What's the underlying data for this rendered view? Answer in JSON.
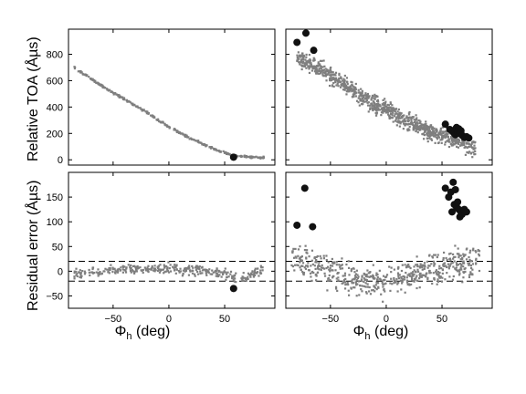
{
  "figure": {
    "ylabel_top": "Relative TOA (Åµs)",
    "ylabel_bottom": "Residual error (Åµs)",
    "xlabel_main": "Φ",
    "xlabel_sub": "h",
    "xlabel_unit": " (deg)"
  },
  "colors": {
    "measured": "#7f7f7f",
    "outlier": "#111111"
  },
  "chart_data": [
    {
      "panel": "top-left",
      "type": "scatter",
      "xlim": [
        -90,
        95
      ],
      "ylim": [
        -40,
        990
      ],
      "xticks": [
        -50,
        0,
        50
      ],
      "yticks": [
        0,
        200,
        400,
        600,
        800
      ],
      "xticklabels_shown": false,
      "yticklabels_shown": true,
      "series": [
        {
          "role": "measured",
          "curve": {
            "x": [
              -85,
              -60,
              -40,
              -20,
              0,
              20,
              40,
              55,
              65,
              75,
              85
            ],
            "y": [
              700,
              560,
              460,
              360,
              250,
              160,
              85,
              40,
              25,
              20,
              18
            ]
          },
          "spread": 8
        },
        {
          "role": "outlier",
          "points": [
            [
              58,
              20
            ]
          ]
        }
      ]
    },
    {
      "panel": "top-right",
      "type": "scatter",
      "xlim": [
        -90,
        95
      ],
      "ylim": [
        -40,
        990
      ],
      "xticks": [
        -50,
        0,
        50
      ],
      "yticks": [
        0,
        200,
        400,
        600,
        800
      ],
      "xticklabels_shown": false,
      "yticklabels_shown": false,
      "series": [
        {
          "role": "measured",
          "curve": {
            "x": [
              -80,
              -60,
              -40,
              -20,
              0,
              20,
              40,
              60,
              80
            ],
            "y": [
              780,
              690,
              580,
              470,
              380,
              290,
              210,
              160,
              90
            ]
          },
          "spread": 60
        },
        {
          "role": "outlier",
          "points": [
            [
              -80,
              890
            ],
            [
              -72,
              960
            ],
            [
              -65,
              830
            ],
            [
              53,
              270
            ],
            [
              57,
              230
            ],
            [
              59,
              220
            ],
            [
              61,
              200
            ],
            [
              62,
              190
            ],
            [
              63,
              245
            ],
            [
              64,
              210
            ],
            [
              65,
              235
            ],
            [
              66,
              200
            ],
            [
              67,
              220
            ],
            [
              68,
              185
            ],
            [
              70,
              170
            ],
            [
              72,
              175
            ],
            [
              74,
              165
            ]
          ]
        }
      ]
    },
    {
      "panel": "bottom-left",
      "type": "scatter",
      "xlim": [
        -90,
        95
      ],
      "ylim": [
        -75,
        200
      ],
      "xticks": [
        -50,
        0,
        50
      ],
      "yticks": [
        -50,
        0,
        50,
        100,
        150
      ],
      "xticklabels_shown": true,
      "yticklabels_shown": true,
      "hlines": [
        20,
        -20
      ],
      "series": [
        {
          "role": "measured",
          "curve": {
            "x": [
              -85,
              -60,
              -40,
              -20,
              0,
              20,
              40,
              55,
              65,
              75,
              85
            ],
            "y": [
              -5,
              0,
              3,
              5,
              5,
              3,
              0,
              -10,
              -15,
              -5,
              5
            ]
          },
          "spread": 10
        },
        {
          "role": "outlier",
          "points": [
            [
              58,
              -35
            ]
          ]
        }
      ]
    },
    {
      "panel": "bottom-right",
      "type": "scatter",
      "xlim": [
        -90,
        95
      ],
      "ylim": [
        -75,
        200
      ],
      "xticks": [
        -50,
        0,
        50
      ],
      "yticks": [
        -50,
        0,
        50,
        100,
        150
      ],
      "xticklabels_shown": true,
      "yticklabels_shown": false,
      "hlines": [
        20,
        -20
      ],
      "series": [
        {
          "role": "measured",
          "curve": {
            "x": [
              -85,
              -70,
              -50,
              -30,
              -10,
              0,
              10,
              30,
              50,
              70,
              85
            ],
            "y": [
              30,
              15,
              0,
              -15,
              -25,
              -25,
              -15,
              0,
              5,
              15,
              25
            ]
          },
          "spread": 30
        },
        {
          "role": "outlier",
          "points": [
            [
              -80,
              93
            ],
            [
              -73,
              168
            ],
            [
              -66,
              90
            ],
            [
              53,
              168
            ],
            [
              56,
              150
            ],
            [
              58,
              160
            ],
            [
              59,
              120
            ],
            [
              60,
              180
            ],
            [
              61,
              135
            ],
            [
              62,
              165
            ],
            [
              63,
              130
            ],
            [
              64,
              140
            ],
            [
              65,
              125
            ],
            [
              66,
              110
            ],
            [
              67,
              120
            ],
            [
              68,
              115
            ],
            [
              70,
              125
            ],
            [
              72,
              120
            ]
          ]
        }
      ]
    }
  ]
}
